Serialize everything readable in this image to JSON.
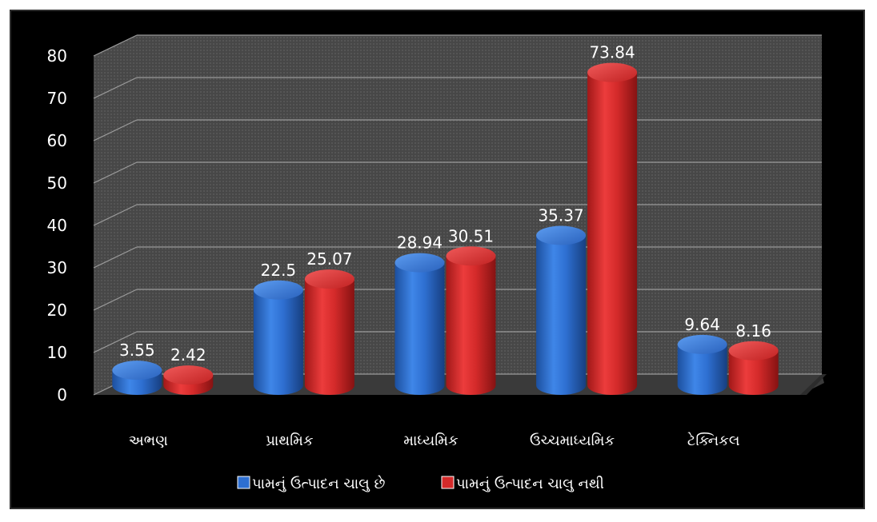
{
  "chart_data": {
    "type": "bar",
    "title": "",
    "xlabel": "",
    "ylabel": "",
    "categories": [
      "અભણ",
      "પ્રાથમિક",
      "માધ્યમિક",
      "ઉચ્ચમાધ્યમિક",
      "ટેક્નિકલ"
    ],
    "series": [
      {
        "name": "પામનું ઉત્પાદન ચાલુ છે",
        "values": [
          3.55,
          22.5,
          28.94,
          35.37,
          9.64
        ],
        "color": "#2e6fd1"
      },
      {
        "name": "પામનું ઉત્પાદન ચાલુ નથી",
        "values": [
          2.42,
          25.07,
          30.51,
          73.84,
          8.16
        ],
        "color": "#d42a2a"
      }
    ],
    "yticks": [
      0,
      10,
      20,
      30,
      40,
      50,
      60,
      70,
      80
    ],
    "ylim": [
      0,
      80
    ],
    "grid": true,
    "legend": "bottom",
    "style": "3d-cylinder"
  },
  "colors": {
    "background": "#000000",
    "wall": "#4a4a4a",
    "gridline": "#9a9a9a",
    "text": "#ffffff"
  }
}
